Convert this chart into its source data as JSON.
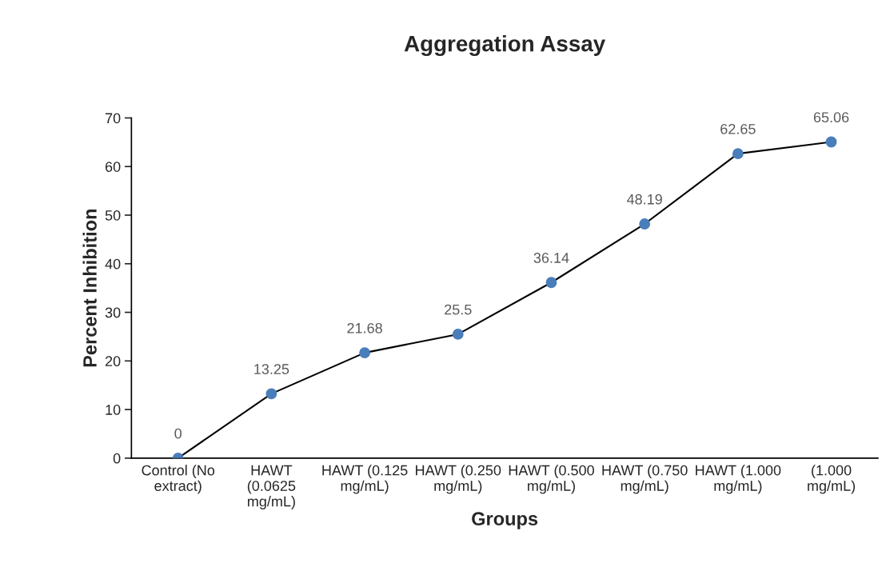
{
  "chart_data": {
    "type": "line",
    "title": "Aggregation Assay",
    "xlabel": "Groups",
    "ylabel": "Percent Inhibition",
    "categories": [
      "Control (No extract)",
      "HAWT (0.0625 mg/mL)",
      "HAWT (0.125 mg/mL)",
      "HAWT (0.250 mg/mL)",
      "HAWT (0.500 mg/mL)",
      "HAWT (0.750 mg/mL)",
      "HAWT (1.000 mg/mL)",
      "(1.000 mg/mL)"
    ],
    "series": [
      {
        "color": "#4a7ebb",
        "values": [
          0,
          13.25,
          21.68,
          25.5,
          36.14,
          48.19,
          62.65,
          65.06
        ]
      }
    ],
    "ylim": [
      0,
      70
    ],
    "yticks": [
      0,
      10,
      20,
      30,
      40,
      50,
      60,
      70
    ],
    "marker": "circle",
    "line_style": "solid",
    "grid": false,
    "data_labels": true
  }
}
